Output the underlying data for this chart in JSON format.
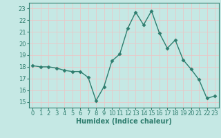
{
  "x": [
    0,
    1,
    2,
    3,
    4,
    5,
    6,
    7,
    8,
    9,
    10,
    11,
    12,
    13,
    14,
    15,
    16,
    17,
    18,
    19,
    20,
    21,
    22,
    23
  ],
  "y": [
    18.1,
    18.0,
    18.0,
    17.9,
    17.7,
    17.6,
    17.6,
    17.1,
    15.1,
    16.3,
    18.5,
    19.1,
    21.3,
    22.7,
    21.6,
    22.8,
    20.9,
    19.6,
    20.3,
    18.6,
    17.8,
    16.9,
    15.3,
    15.5
  ],
  "line_color": "#2e7d6e",
  "marker": "D",
  "markersize": 2.5,
  "linewidth": 1.0,
  "xlabel": "Humidex (Indice chaleur)",
  "xlim": [
    -0.5,
    23.5
  ],
  "ylim": [
    14.5,
    23.5
  ],
  "yticks": [
    15,
    16,
    17,
    18,
    19,
    20,
    21,
    22,
    23
  ],
  "xticks": [
    0,
    1,
    2,
    3,
    4,
    5,
    6,
    7,
    8,
    9,
    10,
    11,
    12,
    13,
    14,
    15,
    16,
    17,
    18,
    19,
    20,
    21,
    22,
    23
  ],
  "bg_color": "#c5e8e4",
  "grid_color": "#e8c8c8",
  "tick_color": "#2e7d6e",
  "label_color": "#2e7d6e",
  "xlabel_fontsize": 7.0,
  "tick_fontsize": 6.0
}
